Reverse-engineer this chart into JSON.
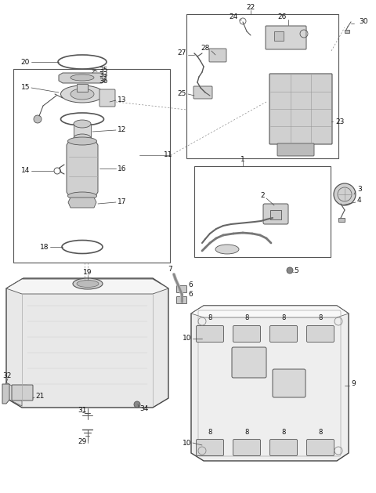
{
  "bg_color": "#ffffff",
  "fig_width": 4.8,
  "fig_height": 6.29,
  "dpi": 100,
  "fs": 6.5,
  "lc": "#111111",
  "partc": "#555555",
  "fillc": "#e8e8e8",
  "darkc": "#333333"
}
